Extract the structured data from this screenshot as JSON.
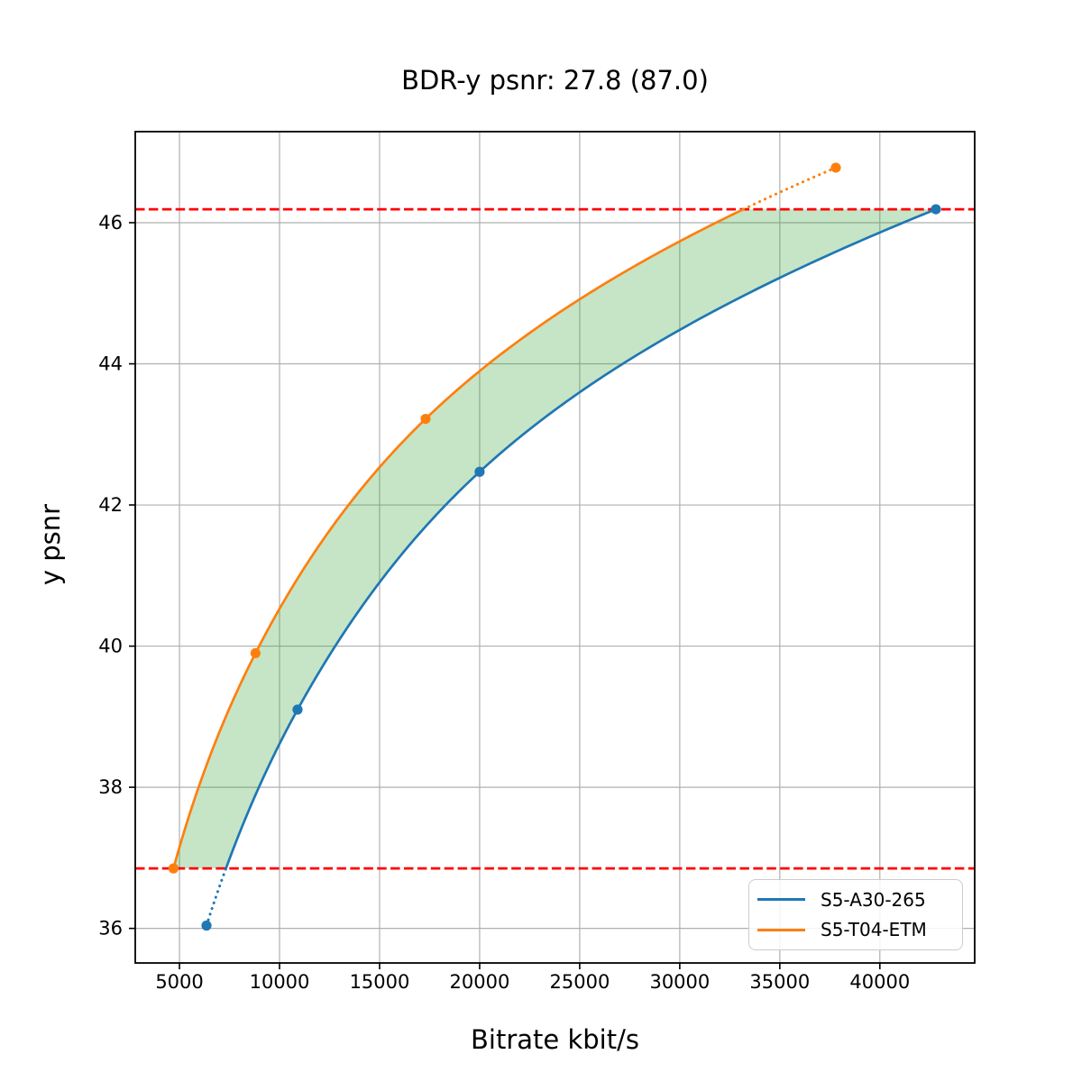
{
  "figure": {
    "background": "#ffffff"
  },
  "chart_data": {
    "type": "line",
    "title": "BDR-y psnr: 27.8 (87.0)",
    "xlabel": "Bitrate kbit/s",
    "ylabel": "y psnr",
    "xlim": [
      2790,
      44740
    ],
    "ylim": [
      35.51,
      47.29
    ],
    "x_ticks": [
      5000,
      10000,
      15000,
      20000,
      25000,
      30000,
      35000,
      40000
    ],
    "y_ticks": [
      36,
      38,
      40,
      42,
      44,
      46
    ],
    "grid": true,
    "grid_color": "#b0b0b0",
    "axis_color": "#000000",
    "legend_position": "lower right",
    "series": [
      {
        "name": "S5-A30-265",
        "color": "#1f77b4",
        "marker": "circle",
        "x": [
          6350,
          10900,
          20000,
          42800
        ],
        "y": [
          36.04,
          39.1,
          42.47,
          46.19
        ],
        "dotted_end": "start"
      },
      {
        "name": "S5-T04-ETM",
        "color": "#ff7f0e",
        "marker": "circle",
        "x": [
          4700,
          8800,
          17300,
          37800
        ],
        "y": [
          36.85,
          39.9,
          43.22,
          46.78
        ],
        "dotted_end": "end"
      }
    ],
    "hlines": [
      {
        "y": 46.19,
        "color": "#ff0000",
        "style": "dashed"
      },
      {
        "y": 36.85,
        "color": "#ff0000",
        "style": "dashed"
      }
    ],
    "shaded_region": {
      "between": [
        "S5-T04-ETM",
        "S5-A30-265"
      ],
      "y_range": [
        36.85,
        46.19
      ],
      "color": "#2ca02c",
      "alpha": 0.27
    }
  }
}
